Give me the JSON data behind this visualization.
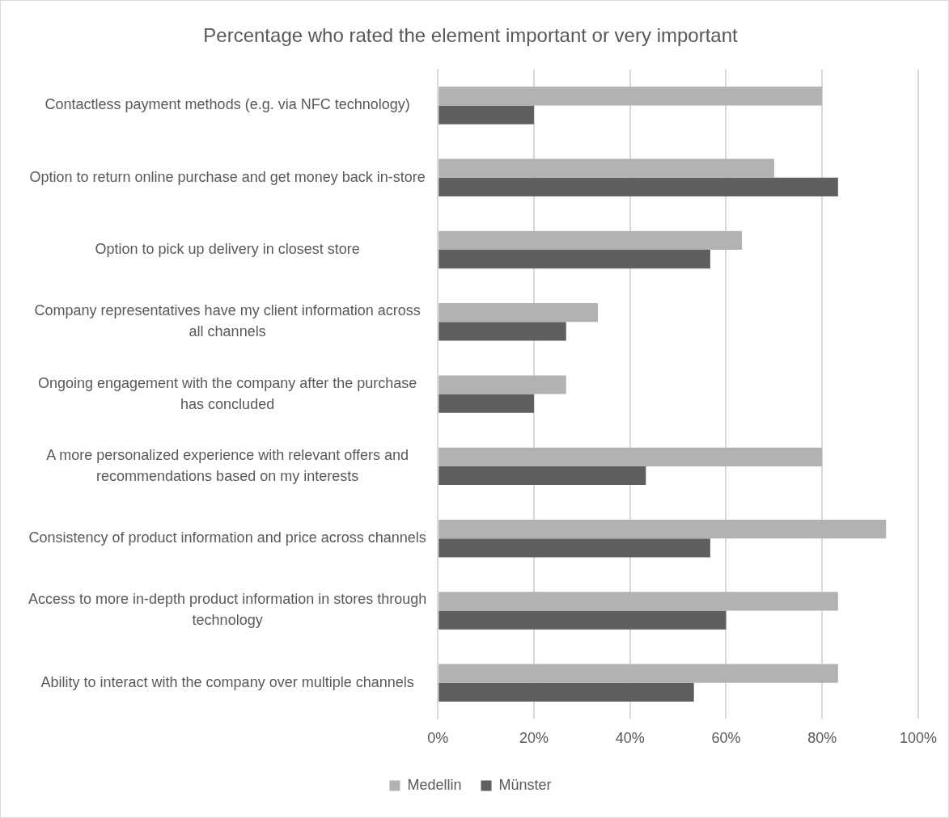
{
  "chart_data": {
    "type": "bar",
    "orientation": "horizontal",
    "title": "Percentage who rated the element important or very important",
    "categories": [
      "Contactless payment methods (e.g. via NFC technology)",
      "Option to return online purchase and get money back in-store",
      "Option to pick up delivery in closest store",
      "Company representatives have my client information across all channels",
      "Ongoing engagement with the company after the purchase has concluded",
      "A more personalized experience with relevant offers and recommendations based on my interests",
      "Consistency of product information and price across channels",
      "Access to more in-depth product information in stores through technology",
      "Ability to interact with the company over multiple channels"
    ],
    "series": [
      {
        "name": "Medellin",
        "color": "#b2b2b2",
        "values": [
          80,
          70,
          63.3,
          33.3,
          26.7,
          80,
          93.3,
          83.3,
          83.3
        ]
      },
      {
        "name": "Münster",
        "color": "#5f5f5f",
        "values": [
          20,
          83.3,
          56.7,
          26.7,
          20,
          43.3,
          56.7,
          60,
          53.3
        ]
      }
    ],
    "xlim": [
      0,
      100
    ],
    "xticks": [
      {
        "value": 0,
        "label": "0%"
      },
      {
        "value": 20,
        "label": "20%"
      },
      {
        "value": 40,
        "label": "40%"
      },
      {
        "value": 60,
        "label": "60%"
      },
      {
        "value": 80,
        "label": "80%"
      },
      {
        "value": 100,
        "label": "100%"
      }
    ],
    "grid": "x",
    "legend": "bottom"
  }
}
